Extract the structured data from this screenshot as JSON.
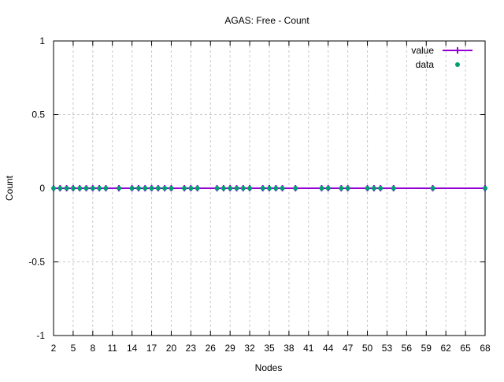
{
  "chart_data": {
    "type": "line",
    "title": "AGAS: Free - Count",
    "xlabel": "Nodes",
    "ylabel": "Count",
    "xlim": [
      2,
      68
    ],
    "ylim": [
      -1,
      1
    ],
    "xticks": [
      2,
      5,
      8,
      11,
      14,
      17,
      20,
      23,
      26,
      29,
      32,
      35,
      38,
      41,
      44,
      47,
      50,
      53,
      56,
      59,
      62,
      65,
      68
    ],
    "yticks": [
      -1,
      -0.5,
      0,
      0.5,
      1
    ],
    "grid": true,
    "legend_position": "top-right",
    "series": [
      {
        "name": "value",
        "style": "linespoints",
        "color": "#9400d3",
        "x": [
          2,
          3,
          4,
          5,
          6,
          7,
          8,
          9,
          10,
          12,
          14,
          15,
          16,
          17,
          18,
          19,
          20,
          22,
          23,
          24,
          27,
          28,
          29,
          30,
          31,
          32,
          34,
          35,
          36,
          37,
          39,
          43,
          44,
          46,
          47,
          50,
          51,
          52,
          54,
          60,
          68
        ],
        "y": [
          0,
          0,
          0,
          0,
          0,
          0,
          0,
          0,
          0,
          0,
          0,
          0,
          0,
          0,
          0,
          0,
          0,
          0,
          0,
          0,
          0,
          0,
          0,
          0,
          0,
          0,
          0,
          0,
          0,
          0,
          0,
          0,
          0,
          0,
          0,
          0,
          0,
          0,
          0,
          0,
          0
        ]
      },
      {
        "name": "data",
        "style": "points",
        "color": "#009e73",
        "x": [
          2,
          3,
          4,
          5,
          6,
          7,
          8,
          9,
          10,
          12,
          14,
          15,
          16,
          17,
          18,
          19,
          20,
          22,
          23,
          24,
          27,
          28,
          29,
          30,
          31,
          32,
          34,
          35,
          36,
          37,
          39,
          43,
          44,
          46,
          47,
          50,
          51,
          52,
          54,
          60,
          68
        ],
        "y": [
          0,
          0,
          0,
          0,
          0,
          0,
          0,
          0,
          0,
          0,
          0,
          0,
          0,
          0,
          0,
          0,
          0,
          0,
          0,
          0,
          0,
          0,
          0,
          0,
          0,
          0,
          0,
          0,
          0,
          0,
          0,
          0,
          0,
          0,
          0,
          0,
          0,
          0,
          0,
          0,
          0
        ]
      }
    ]
  }
}
